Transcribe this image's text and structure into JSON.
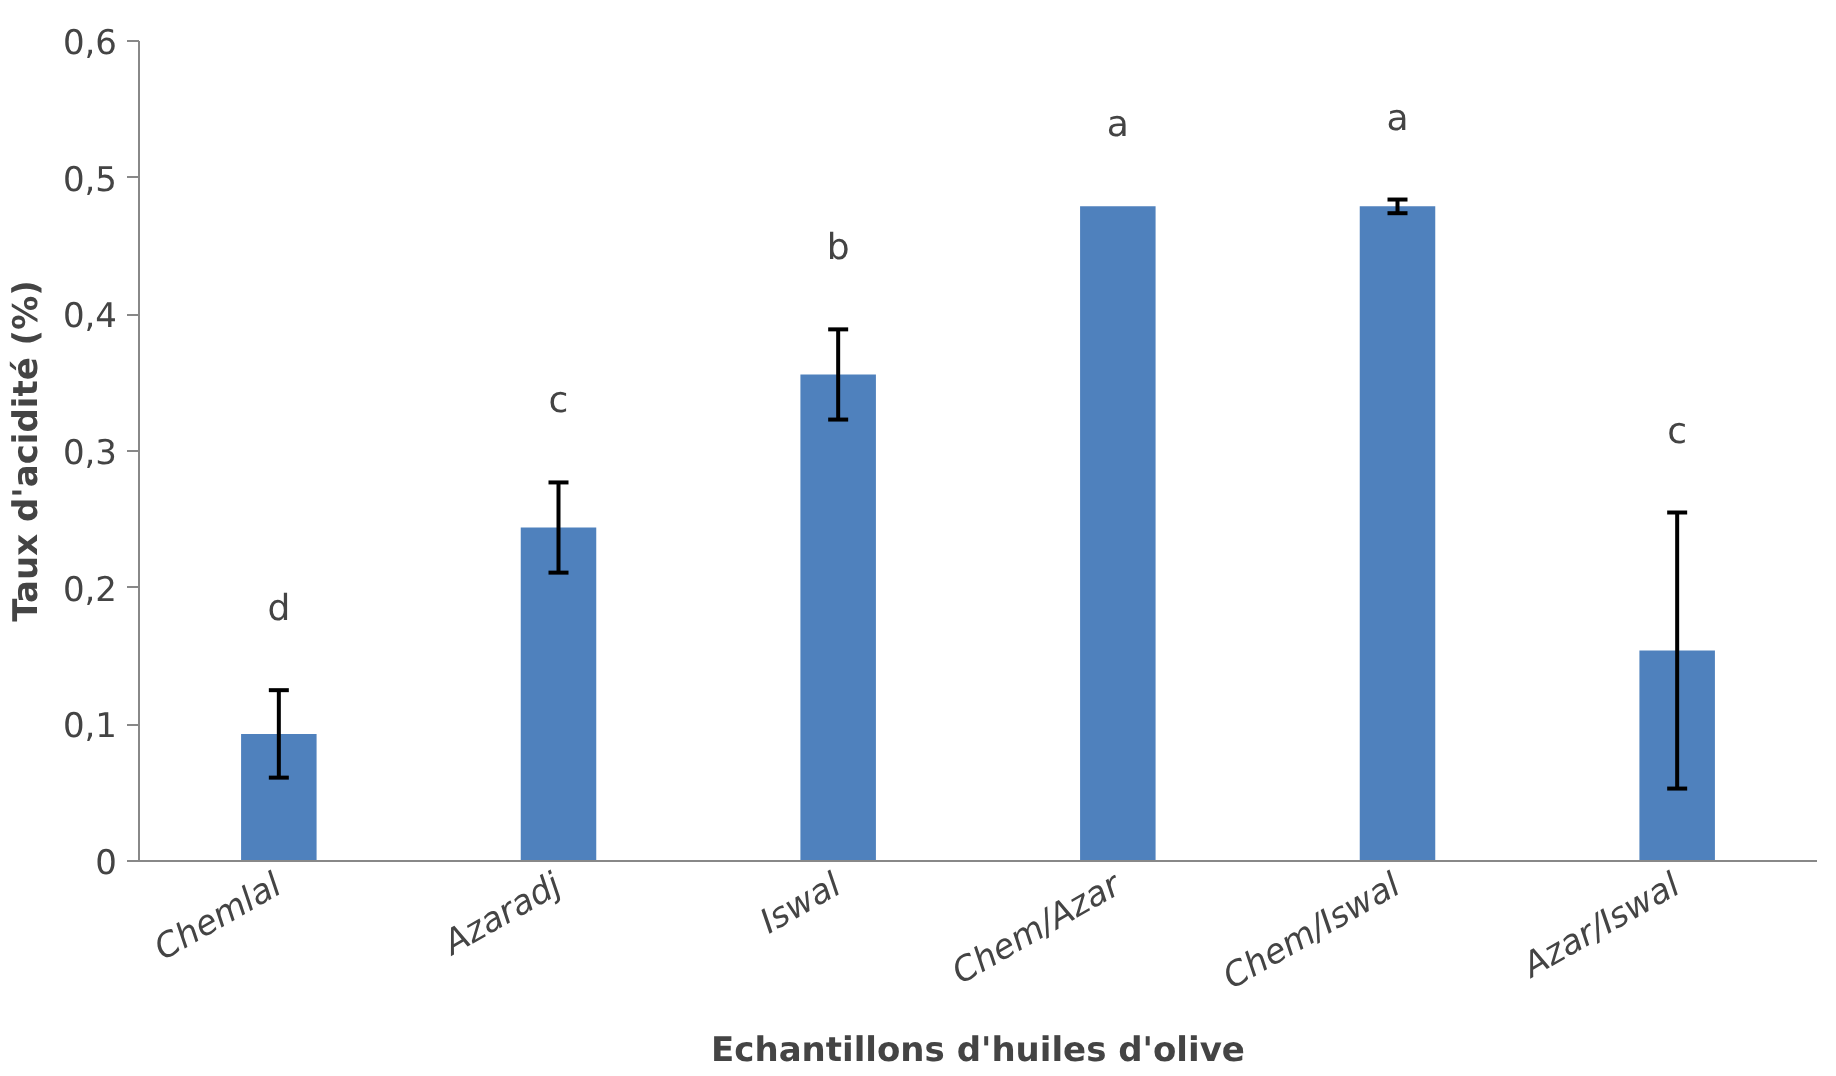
{
  "chart_data": {
    "type": "bar",
    "xlabel": "Echantillons d'huiles d'olive",
    "ylabel": "Taux d'acidité (%)",
    "categories": [
      "Chemlal",
      "Azaradj",
      "Iswal",
      "Chem/Azar",
      "Chem/Iswal",
      "Azar/Iswal"
    ],
    "values": [
      0.093,
      0.244,
      0.356,
      0.479,
      0.479,
      0.154
    ],
    "errors": [
      0.032,
      0.033,
      0.033,
      null,
      0.005,
      0.101
    ],
    "color": "#4f81bd",
    "ylim": [
      0,
      0.6
    ],
    "yticks": [
      0,
      {
        "value": 0.1,
        "label": "0,1"
      },
      {
        "value": 0.2,
        "label": "0,2"
      },
      {
        "value": 0.3,
        "label": "0,3"
      },
      {
        "value": 0.4,
        "label": "0,4"
      },
      {
        "value": 0.5,
        "label": "0,5"
      },
      {
        "value": 0.6,
        "label": "0,6"
      }
    ],
    "annotations": [
      "d",
      "c",
      "b",
      "a",
      "a",
      "c"
    ],
    "grid": false
  }
}
